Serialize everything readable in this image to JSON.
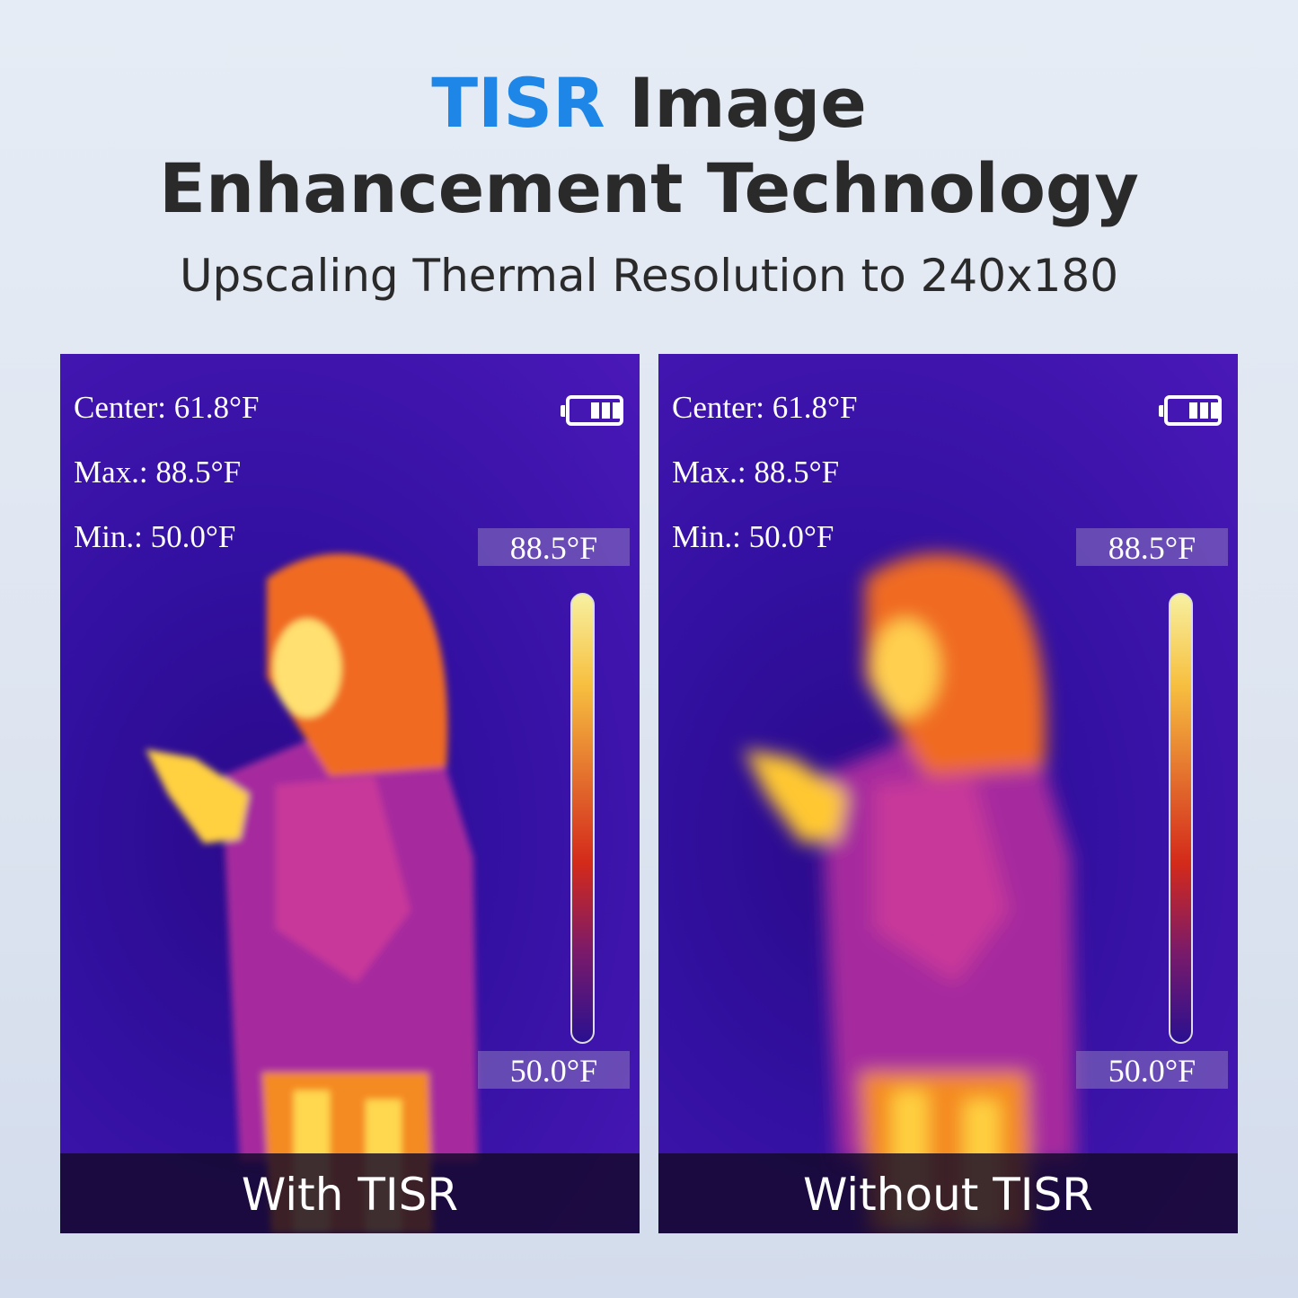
{
  "header": {
    "title_accent": "TISR",
    "title_rest": " Image",
    "title_line2": "Enhancement Technology",
    "subtitle": "Upscaling Thermal Resolution to 240x180"
  },
  "colors": {
    "accent": "#1e86e6",
    "text": "#2a2a2a"
  },
  "panels": [
    {
      "center": "Center: 61.8°F",
      "max": "Max.: 88.5°F",
      "min": "Min.: 50.0°F",
      "scale_max": "88.5°F",
      "scale_min": "50.0°F",
      "battery_icon": "battery-full-icon",
      "caption": "With TISR"
    },
    {
      "center": "Center: 61.8°F",
      "max": "Max.: 88.5°F",
      "min": "Min.: 50.0°F",
      "scale_max": "88.5°F",
      "scale_min": "50.0°F",
      "battery_icon": "battery-full-icon",
      "caption": "Without TISR"
    }
  ]
}
